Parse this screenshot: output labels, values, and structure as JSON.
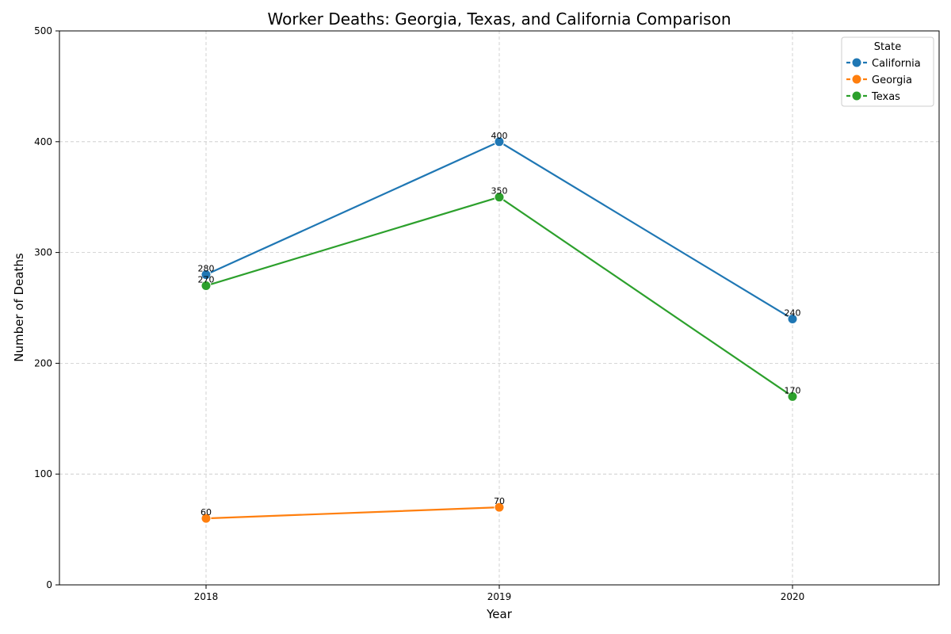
{
  "chart_data": {
    "type": "line",
    "title": "Worker Deaths: Georgia, Texas, and California Comparison",
    "xlabel": "Year",
    "ylabel": "Number of Deaths",
    "x": [
      "2018",
      "2019",
      "2020"
    ],
    "ylim": [
      0,
      500
    ],
    "yticks": [
      0,
      100,
      200,
      300,
      400,
      500
    ],
    "grid": true,
    "legend": {
      "title": "State",
      "placement": "top-right"
    },
    "series": [
      {
        "name": "California",
        "color": "#1f77b4",
        "values": [
          280,
          400,
          240
        ]
      },
      {
        "name": "Georgia",
        "color": "#ff7f0e",
        "values": [
          60,
          70,
          null
        ]
      },
      {
        "name": "Texas",
        "color": "#2ca02c",
        "values": [
          270,
          350,
          170
        ]
      }
    ]
  }
}
